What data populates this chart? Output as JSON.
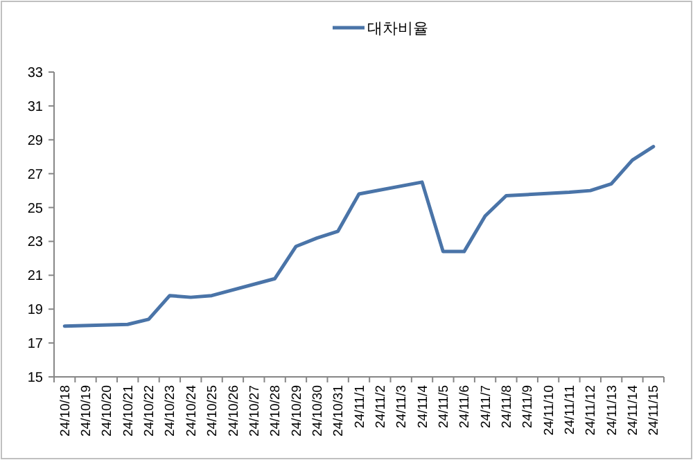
{
  "chart_data": {
    "type": "line",
    "categories": [
      "24/10/18",
      "24/10/19",
      "24/10/20",
      "24/10/21",
      "24/10/22",
      "24/10/23",
      "24/10/24",
      "24/10/25",
      "24/10/26",
      "24/10/27",
      "24/10/28",
      "24/10/29",
      "24/10/30",
      "24/10/31",
      "24/11/1",
      "24/11/2",
      "24/11/3",
      "24/11/4",
      "24/11/5",
      "24/11/6",
      "24/11/7",
      "24/11/8",
      "24/11/9",
      "24/11/10",
      "24/11/11",
      "24/11/12",
      "24/11/13",
      "24/11/14",
      "24/11/15"
    ],
    "series": [
      {
        "name": "대차비율",
        "color": "#4a74a8",
        "values": [
          18.0,
          null,
          null,
          18.1,
          18.4,
          19.8,
          19.7,
          19.8,
          null,
          null,
          20.8,
          22.7,
          23.2,
          23.6,
          25.8,
          null,
          null,
          26.5,
          22.4,
          22.4,
          24.5,
          25.7,
          null,
          null,
          25.9,
          26.0,
          26.4,
          27.8,
          28.6
        ]
      }
    ],
    "ylim": [
      15,
      33
    ],
    "yticks": [
      15,
      17,
      19,
      21,
      23,
      25,
      27,
      29,
      31,
      33
    ],
    "legend": "top",
    "grid": false
  }
}
